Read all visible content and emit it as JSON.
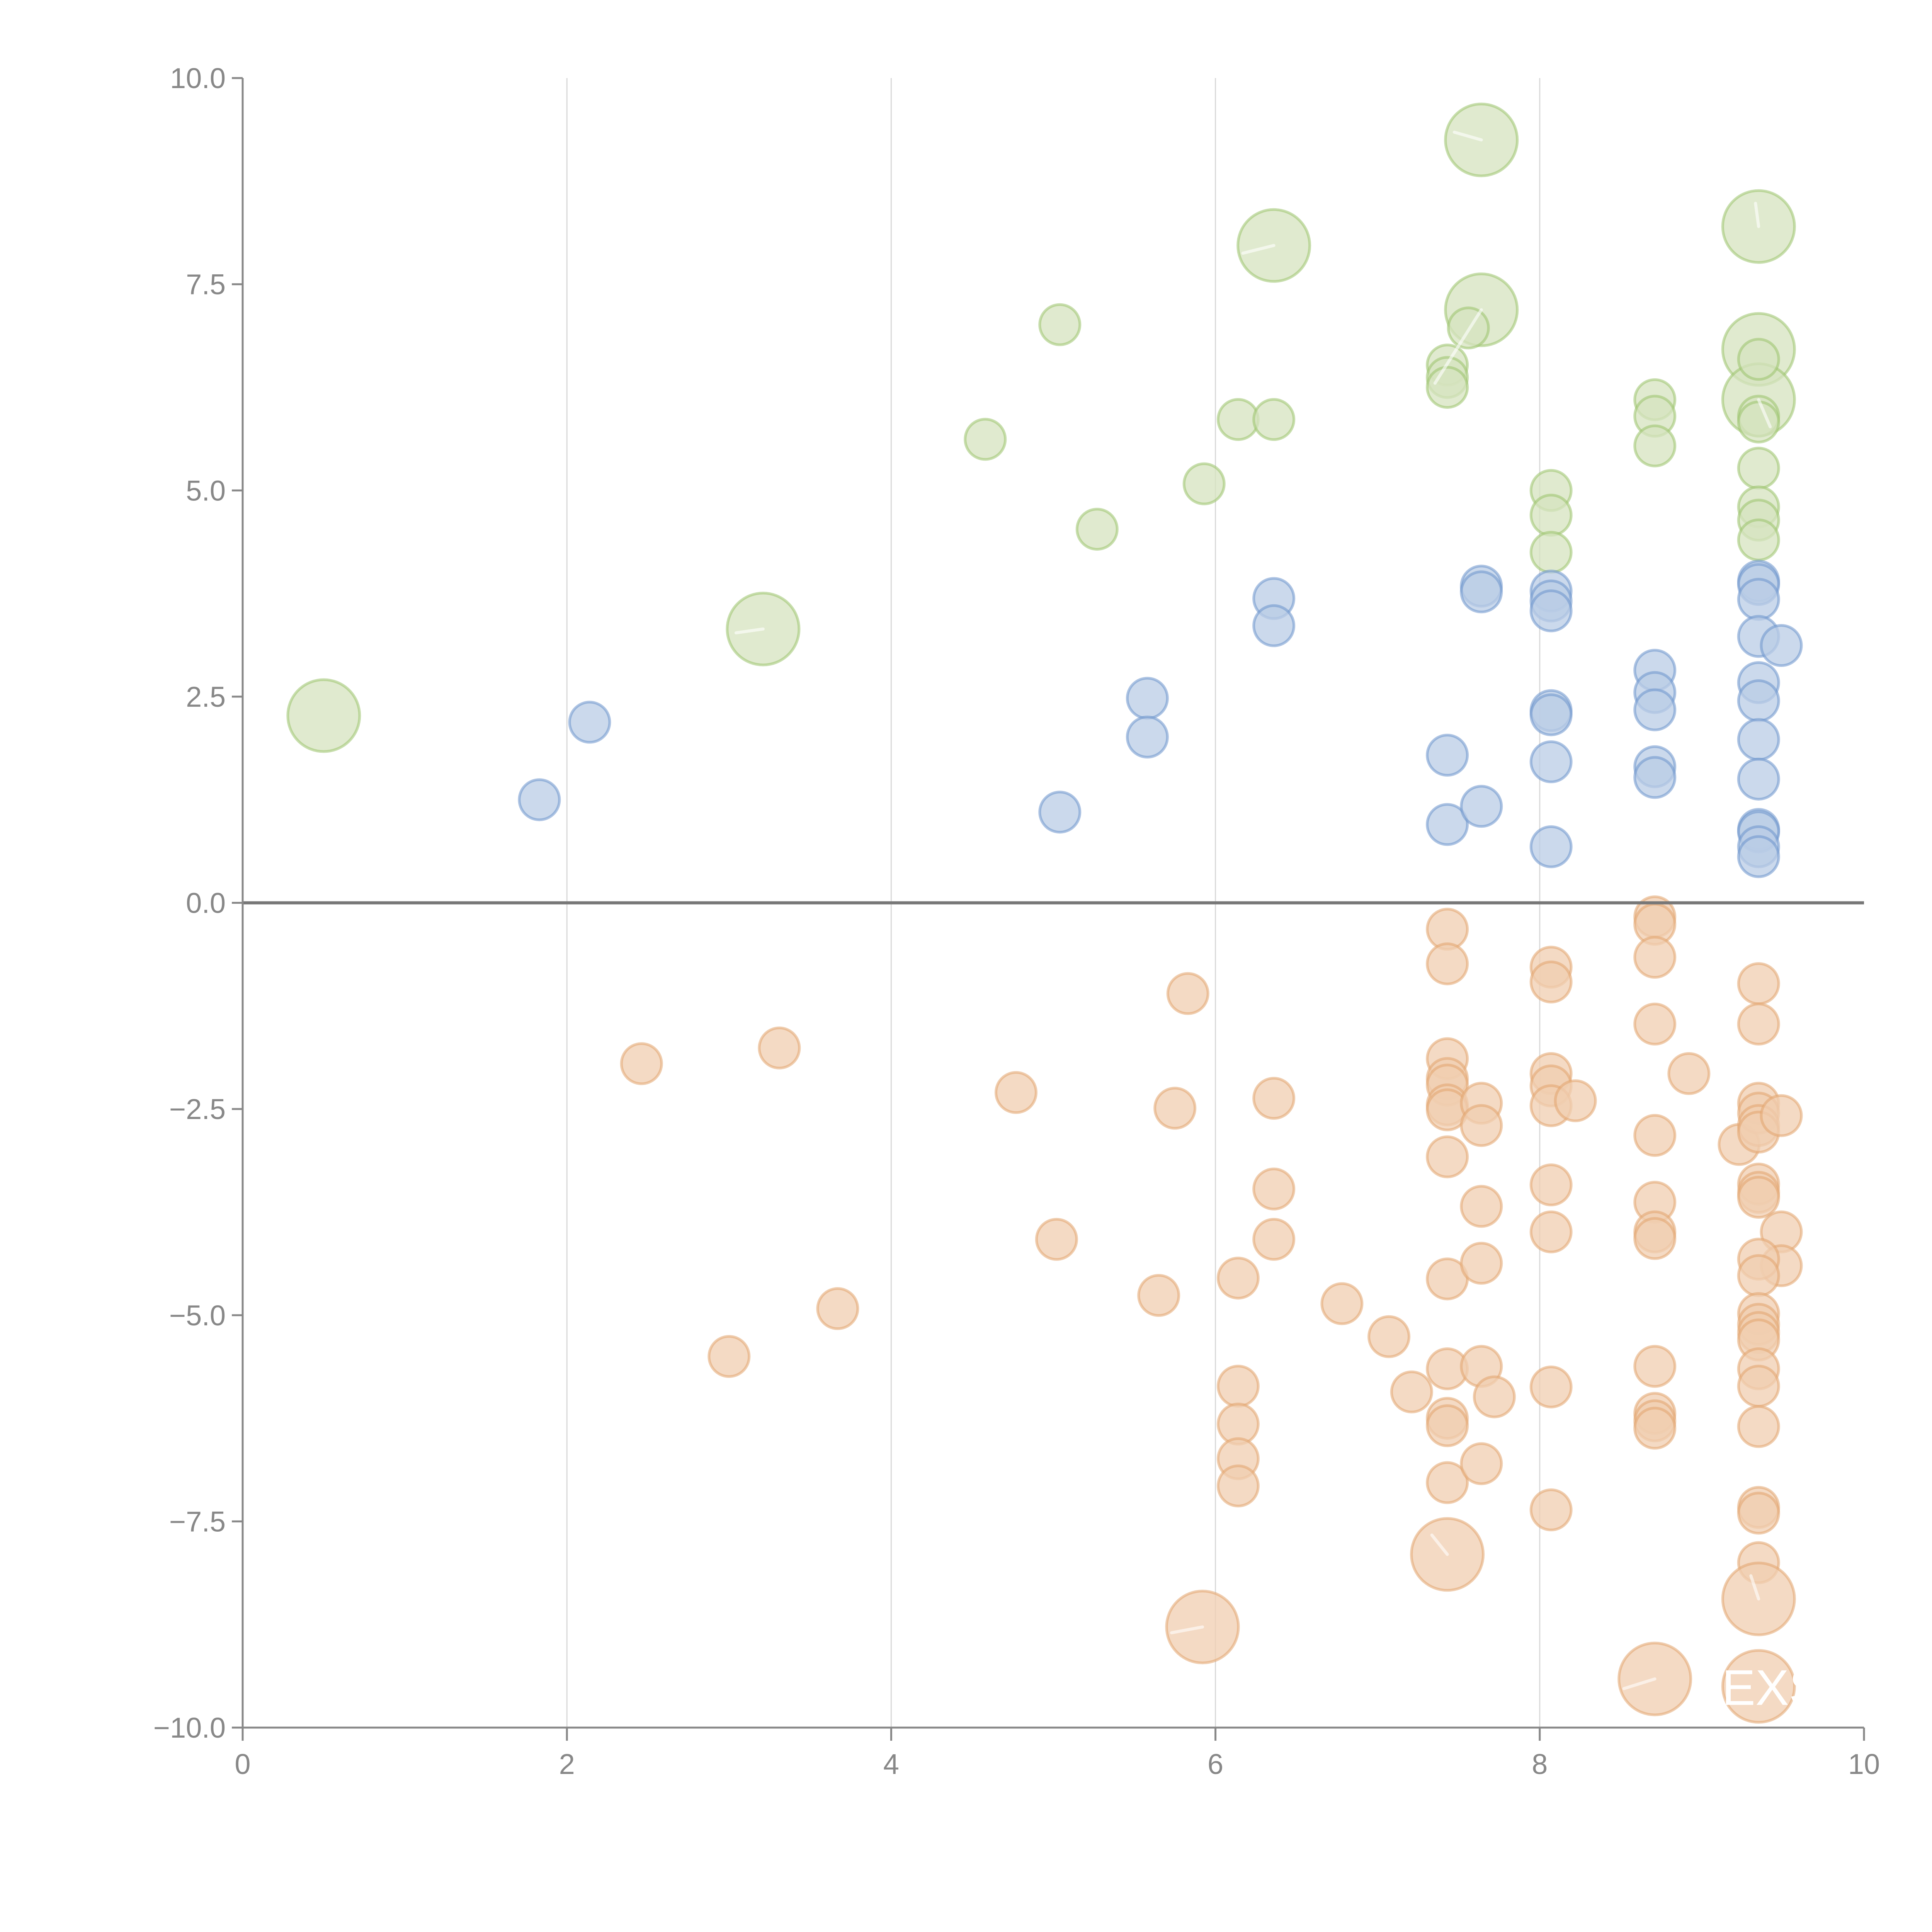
{
  "chart_data": {
    "type": "scatter",
    "title": "",
    "xlabel": "",
    "ylabel": "",
    "xlim": [
      0,
      10
    ],
    "ylim": [
      -10,
      10
    ],
    "grid": "vertical",
    "x_ticks": [
      "0",
      "2",
      "4",
      "6",
      "8",
      "10"
    ],
    "x_tick_values": [
      0,
      2,
      4,
      6,
      8,
      10
    ],
    "y_ticks": [
      "10.0",
      "7.5",
      "5.0",
      "2.5",
      "0.0",
      "−2.5",
      "−5.0",
      "−7.5",
      "−10.0"
    ],
    "y_tick_values": [
      10,
      7.5,
      5,
      2.5,
      0,
      -2.5,
      -5,
      -7.5,
      -10
    ],
    "annotations": [
      {
        "text": "EXS",
        "x": 9.35,
        "y": -9.5
      }
    ],
    "series": [
      {
        "name": "green",
        "color": "#9bc26b",
        "fill": "#d5e3bf",
        "points": [
          [
            0.5,
            2.27,
            2
          ],
          [
            3.21,
            3.32,
            2
          ],
          [
            6.36,
            7.97,
            2
          ],
          [
            7.64,
            9.25,
            2
          ],
          [
            7.64,
            7.19,
            2
          ],
          [
            9.35,
            8.2,
            2
          ],
          [
            9.35,
            6.71,
            2
          ],
          [
            9.35,
            6.1,
            2
          ],
          [
            5.04,
            7.01,
            1
          ],
          [
            4.58,
            5.62,
            1
          ],
          [
            5.27,
            4.53,
            1
          ],
          [
            5.93,
            5.08,
            1
          ],
          [
            6.14,
            5.86,
            1
          ],
          [
            6.36,
            5.86,
            1
          ],
          [
            7.56,
            6.97,
            1
          ],
          [
            7.43,
            6.52,
            1
          ],
          [
            7.43,
            6.37,
            1
          ],
          [
            7.43,
            6.25,
            1
          ],
          [
            8.71,
            6.1,
            1
          ],
          [
            8.71,
            5.9,
            1
          ],
          [
            8.71,
            5.54,
            1
          ],
          [
            9.35,
            6.59,
            1
          ],
          [
            9.35,
            5.9,
            1
          ],
          [
            9.35,
            5.83,
            1
          ],
          [
            9.35,
            5.27,
            1
          ],
          [
            9.35,
            4.8,
            1
          ],
          [
            9.35,
            4.64,
            1
          ],
          [
            9.35,
            4.4,
            1
          ],
          [
            8.07,
            5.0,
            1
          ],
          [
            8.07,
            4.7,
            1
          ],
          [
            8.07,
            4.25,
            1
          ]
        ]
      },
      {
        "name": "blue",
        "color": "#6b93cc",
        "fill": "#b9cce5",
        "points": [
          [
            1.83,
            1.25,
            1
          ],
          [
            2.14,
            2.19,
            1
          ],
          [
            5.04,
            1.1,
            1
          ],
          [
            5.58,
            2.48,
            1
          ],
          [
            5.58,
            2.01,
            1
          ],
          [
            6.36,
            3.69,
            1
          ],
          [
            6.36,
            3.36,
            1
          ],
          [
            7.43,
            1.79,
            1
          ],
          [
            7.43,
            0.95,
            1
          ],
          [
            7.64,
            3.84,
            1
          ],
          [
            7.64,
            3.77,
            1
          ],
          [
            7.64,
            1.17,
            1
          ],
          [
            8.07,
            3.78,
            1
          ],
          [
            8.07,
            3.66,
            1
          ],
          [
            8.07,
            3.54,
            1
          ],
          [
            8.07,
            2.33,
            1
          ],
          [
            8.07,
            2.28,
            1
          ],
          [
            8.07,
            1.71,
            1
          ],
          [
            8.07,
            0.68,
            1
          ],
          [
            8.71,
            2.82,
            1
          ],
          [
            8.71,
            2.55,
            1
          ],
          [
            8.71,
            2.34,
            1
          ],
          [
            8.71,
            1.65,
            1
          ],
          [
            8.71,
            1.52,
            1
          ],
          [
            9.35,
            3.9,
            1
          ],
          [
            9.35,
            3.86,
            1
          ],
          [
            9.35,
            3.68,
            1
          ],
          [
            9.35,
            3.23,
            1
          ],
          [
            9.49,
            3.12,
            1
          ],
          [
            9.35,
            2.67,
            1
          ],
          [
            9.35,
            2.45,
            1
          ],
          [
            9.35,
            1.98,
            1
          ],
          [
            9.35,
            1.5,
            1
          ],
          [
            9.35,
            0.89,
            1
          ],
          [
            9.35,
            0.86,
            1
          ],
          [
            9.35,
            0.68,
            1
          ],
          [
            9.35,
            0.56,
            1
          ]
        ]
      },
      {
        "name": "orange",
        "color": "#e2a46e",
        "fill": "#f0cdb0",
        "points": [
          [
            2.46,
            -1.95,
            1
          ],
          [
            3.31,
            -1.76,
            1
          ],
          [
            3.0,
            -5.5,
            1
          ],
          [
            3.67,
            -4.92,
            1
          ],
          [
            4.77,
            -2.3,
            1
          ],
          [
            5.02,
            -4.08,
            1
          ],
          [
            5.75,
            -2.49,
            1
          ],
          [
            5.83,
            -1.1,
            1
          ],
          [
            5.65,
            -4.76,
            1
          ],
          [
            6.14,
            -4.55,
            1
          ],
          [
            6.14,
            -5.86,
            1
          ],
          [
            6.14,
            -6.32,
            1
          ],
          [
            6.14,
            -6.74,
            1
          ],
          [
            6.14,
            -7.07,
            1
          ],
          [
            6.36,
            -2.37,
            1
          ],
          [
            6.36,
            -3.47,
            1
          ],
          [
            6.36,
            -4.08,
            1
          ],
          [
            6.78,
            -4.86,
            1
          ],
          [
            7.07,
            -5.26,
            1
          ],
          [
            7.21,
            -5.93,
            1
          ],
          [
            7.43,
            -0.32,
            1
          ],
          [
            7.43,
            -0.74,
            1
          ],
          [
            7.43,
            -1.89,
            1
          ],
          [
            7.43,
            -2.13,
            1
          ],
          [
            7.43,
            -2.21,
            1
          ],
          [
            7.43,
            -2.45,
            1
          ],
          [
            7.43,
            -2.51,
            1
          ],
          [
            7.43,
            -3.08,
            1
          ],
          [
            7.43,
            -4.56,
            1
          ],
          [
            7.43,
            -5.65,
            1
          ],
          [
            7.43,
            -6.25,
            1
          ],
          [
            7.43,
            -6.34,
            1
          ],
          [
            7.43,
            -7.03,
            1
          ],
          [
            7.43,
            -7.9,
            2
          ],
          [
            7.64,
            -2.43,
            1
          ],
          [
            7.64,
            -2.7,
            1
          ],
          [
            7.64,
            -3.68,
            1
          ],
          [
            7.64,
            -4.37,
            1
          ],
          [
            7.64,
            -5.62,
            1
          ],
          [
            7.64,
            -6.8,
            1
          ],
          [
            7.72,
            -5.99,
            1
          ],
          [
            8.07,
            -0.78,
            1
          ],
          [
            8.07,
            -0.96,
            1
          ],
          [
            8.07,
            -2.07,
            1
          ],
          [
            8.07,
            -2.22,
            1
          ],
          [
            8.07,
            -2.46,
            1
          ],
          [
            8.07,
            -3.42,
            1
          ],
          [
            8.07,
            -3.99,
            1
          ],
          [
            8.07,
            -5.87,
            1
          ],
          [
            8.07,
            -7.36,
            1
          ],
          [
            8.22,
            -2.4,
            1
          ],
          [
            8.71,
            -0.17,
            1
          ],
          [
            8.71,
            -0.26,
            1
          ],
          [
            8.71,
            -0.66,
            1
          ],
          [
            8.71,
            -1.47,
            1
          ],
          [
            8.71,
            -2.82,
            1
          ],
          [
            8.71,
            -3.63,
            1
          ],
          [
            8.71,
            -3.99,
            1
          ],
          [
            8.71,
            -4.07,
            1
          ],
          [
            8.71,
            -5.62,
            1
          ],
          [
            8.71,
            -6.19,
            1
          ],
          [
            8.71,
            -6.28,
            1
          ],
          [
            8.71,
            -6.37,
            1
          ],
          [
            8.71,
            -9.41,
            2
          ],
          [
            8.92,
            -2.07,
            1
          ],
          [
            9.23,
            -2.93,
            1
          ],
          [
            9.35,
            -0.98,
            1
          ],
          [
            9.35,
            -1.47,
            1
          ],
          [
            9.35,
            -2.43,
            1
          ],
          [
            9.35,
            -2.55,
            1
          ],
          [
            9.35,
            -2.7,
            1
          ],
          [
            9.35,
            -2.78,
            1
          ],
          [
            9.49,
            -2.58,
            1
          ],
          [
            9.35,
            -3.41,
            1
          ],
          [
            9.35,
            -3.51,
            1
          ],
          [
            9.35,
            -3.57,
            1
          ],
          [
            9.49,
            -3.99,
            1
          ],
          [
            9.49,
            -4.4,
            1
          ],
          [
            9.35,
            -4.32,
            1
          ],
          [
            9.35,
            -4.52,
            1
          ],
          [
            9.35,
            -4.98,
            1
          ],
          [
            9.35,
            -5.11,
            1
          ],
          [
            9.35,
            -5.21,
            1
          ],
          [
            9.35,
            -5.3,
            1
          ],
          [
            9.35,
            -5.65,
            1
          ],
          [
            9.35,
            -5.86,
            1
          ],
          [
            9.35,
            -6.35,
            1
          ],
          [
            9.35,
            -7.33,
            1
          ],
          [
            9.35,
            -7.4,
            1
          ],
          [
            9.35,
            -8.0,
            1
          ],
          [
            9.35,
            -8.44,
            2
          ],
          [
            9.35,
            -9.5,
            2
          ],
          [
            5.92,
            -8.78,
            2
          ]
        ]
      }
    ]
  }
}
